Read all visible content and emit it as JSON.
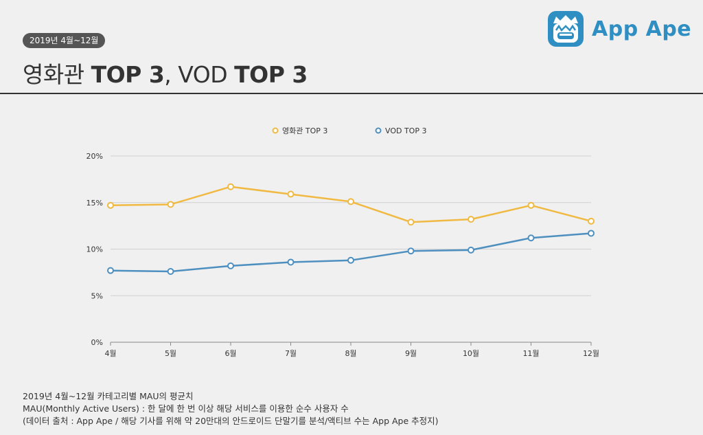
{
  "header": {
    "period_badge": "2019년 4월~12월",
    "title_part1": "영화관 ",
    "title_bold1": "TOP 3",
    "title_part2": ", VOD ",
    "title_bold2": "TOP 3"
  },
  "logo": {
    "text": "App Ape",
    "color": "#2f8fc3"
  },
  "chart_data": {
    "type": "line",
    "categories": [
      "4월",
      "5월",
      "6월",
      "7월",
      "8월",
      "9월",
      "10월",
      "11월",
      "12월"
    ],
    "series": [
      {
        "name": "영화관 TOP 3",
        "color": "#f0b942",
        "values": [
          14.7,
          14.8,
          16.7,
          15.9,
          15.1,
          12.9,
          13.2,
          14.7,
          13.0
        ]
      },
      {
        "name": "VOD TOP 3",
        "color": "#4d8fbf",
        "values": [
          7.7,
          7.6,
          8.2,
          8.6,
          8.8,
          9.8,
          9.9,
          11.2,
          11.7
        ]
      }
    ],
    "yticks": [
      "0%",
      "5%",
      "10%",
      "15%",
      "20%"
    ],
    "ylim": [
      0,
      20
    ],
    "xlabel": "",
    "ylabel": "",
    "legend": "top-center",
    "grid": true
  },
  "footnote": {
    "line1": "2019년 4월~12월 카테고리별 MAU의 평균치",
    "line2": "MAU(Monthly Active Users) : 한 달에 한 번 이상 해당 서비스를 이용한 순수 사용자 수",
    "line3": "(데이터 출처 : App Ape / 해당 기사를 위해 약 20만대의 안드로이드 단말기를 분석/액티브 수는 App Ape 추정지)"
  }
}
